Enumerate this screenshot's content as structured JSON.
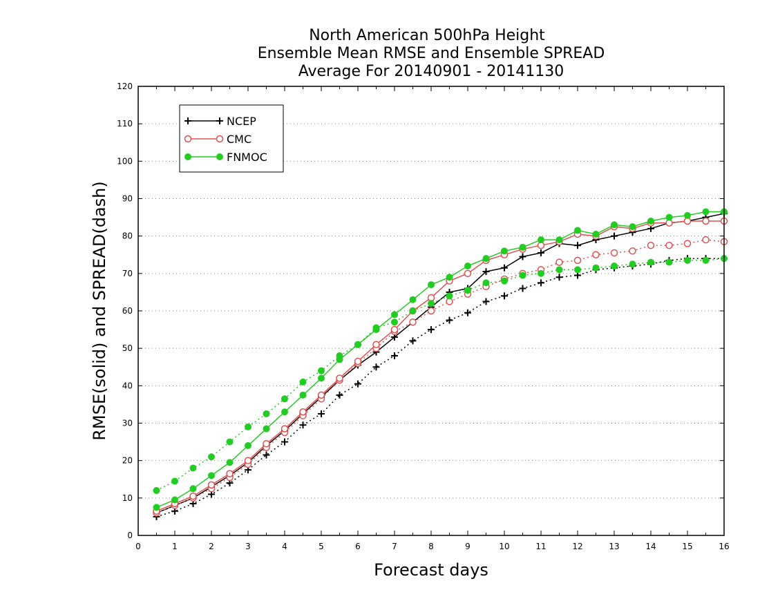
{
  "chart_data": {
    "type": "line",
    "title": [
      "North American 500hPa Height",
      "Ensemble Mean RMSE and Ensemble SPREAD",
      "Average For 20140901 - 20141130"
    ],
    "xlabel": "Forecast days",
    "ylabel": "RMSE(solid) and SPREAD(dash)",
    "xlim": [
      0,
      16
    ],
    "ylim": [
      0,
      120
    ],
    "x_ticks": [
      "0",
      "1",
      "2",
      "3",
      "4",
      "5",
      "6",
      "7",
      "8",
      "9",
      "10",
      "11",
      "12",
      "13",
      "14",
      "15",
      "16"
    ],
    "y_ticks": [
      "0",
      "10",
      "20",
      "30",
      "40",
      "50",
      "60",
      "70",
      "80",
      "90",
      "100",
      "110",
      "120"
    ],
    "grid": true,
    "legend_position": "top-left",
    "x": [
      0.5,
      1,
      1.5,
      2,
      2.5,
      3,
      3.5,
      4,
      4.5,
      5,
      5.5,
      6,
      6.5,
      7,
      7.5,
      8,
      8.5,
      9,
      9.5,
      10,
      10.5,
      11,
      11.5,
      12,
      12.5,
      13,
      13.5,
      14,
      14.5,
      15,
      15.5,
      16
    ],
    "series": [
      {
        "name": "NCEP",
        "color": "#000000",
        "marker": "plus",
        "rmse": [
          6,
          8,
          10,
          13,
          16,
          19.5,
          24,
          28,
          32.5,
          37,
          41.5,
          45.5,
          49,
          53,
          57,
          61,
          65,
          66,
          70.5,
          71.5,
          74.5,
          75.5,
          78,
          77.5,
          79,
          80,
          81,
          82,
          83.5,
          84,
          85,
          86
        ],
        "spread": [
          5,
          6.5,
          8.5,
          11,
          14,
          17.5,
          21.5,
          25,
          29.5,
          32.5,
          37.5,
          40.5,
          45,
          48,
          52,
          55,
          57.5,
          59.5,
          62.5,
          64,
          66,
          67.5,
          69,
          69.5,
          71,
          71.5,
          72,
          72.5,
          73.5,
          74,
          74,
          74
        ]
      },
      {
        "name": "CMC",
        "color": "#e05050",
        "marker": "circle-open",
        "rmse": [
          6.5,
          8.5,
          10.5,
          13.5,
          16.5,
          20,
          24.5,
          28.5,
          33,
          37.5,
          42,
          46.5,
          51,
          55,
          60,
          63.5,
          68,
          70,
          73.5,
          75,
          76.5,
          77.5,
          78.5,
          80.5,
          80,
          82.5,
          82,
          83.5,
          83.5,
          84,
          84,
          84
        ],
        "spread": [
          6,
          8,
          10,
          12.5,
          15.5,
          19,
          23.5,
          27.5,
          32,
          36.5,
          41.5,
          46,
          50,
          54.5,
          57,
          60,
          62.5,
          64.5,
          66.5,
          68.5,
          70,
          71,
          73,
          73.5,
          75,
          75.5,
          76,
          77.5,
          77.5,
          78,
          79,
          78.5
        ]
      },
      {
        "name": "FNMOC",
        "color": "#22cc22",
        "marker": "circle-filled",
        "rmse": [
          7.5,
          9.5,
          12.5,
          16,
          19.5,
          24,
          28.5,
          33,
          37.5,
          42,
          47,
          51,
          55,
          59,
          63,
          67,
          69,
          72,
          74,
          76,
          77,
          79,
          79,
          81.5,
          80.5,
          83,
          82.5,
          84,
          85,
          85.5,
          86.5,
          86.5
        ],
        "spread": [
          12,
          14.5,
          18,
          21,
          25,
          29,
          32.5,
          36.5,
          41,
          44,
          48,
          51,
          55.5,
          57,
          60,
          62,
          64,
          65.5,
          67.5,
          68,
          69.5,
          70,
          71,
          71,
          71.5,
          72,
          72.5,
          73,
          73,
          73.5,
          73.5,
          74
        ]
      }
    ]
  }
}
